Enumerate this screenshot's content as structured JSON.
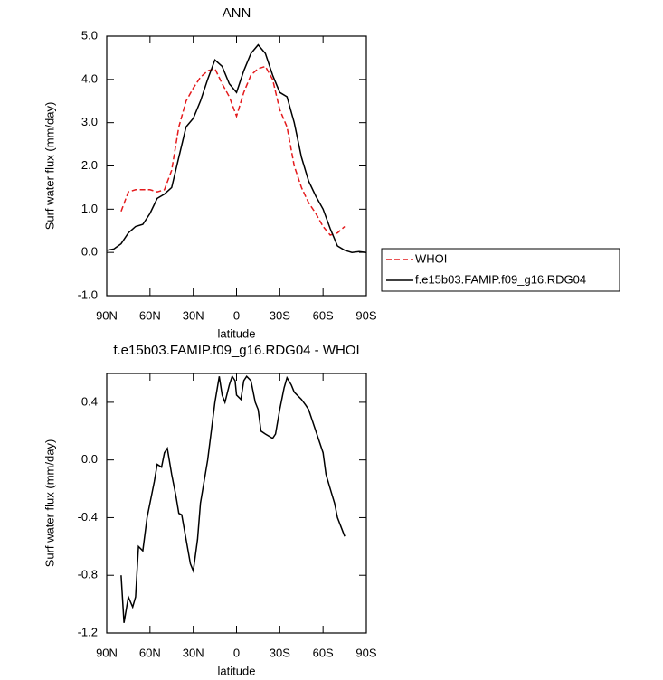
{
  "chart_data": [
    {
      "type": "line",
      "title": "ANN",
      "x_label": "latitude",
      "y_label": "Surf water flux (mm/day)",
      "x": [
        90,
        85,
        80,
        75,
        70,
        65,
        60,
        55,
        50,
        45,
        40,
        35,
        30,
        25,
        20,
        15,
        10,
        5,
        0,
        -5,
        -10,
        -15,
        -20,
        -25,
        -30,
        -35,
        -40,
        -45,
        -50,
        -55,
        -60,
        -65,
        -70,
        -75,
        -80,
        -85,
        -90
      ],
      "series": [
        {
          "name": "WHOI",
          "color": "#e41a1c",
          "line_style": "dashed",
          "values": [
            null,
            null,
            0.95,
            1.4,
            1.45,
            1.45,
            1.45,
            1.4,
            1.45,
            1.9,
            2.9,
            3.5,
            3.8,
            4.05,
            4.2,
            4.25,
            3.9,
            3.6,
            3.15,
            3.7,
            4.1,
            4.25,
            4.3,
            4.0,
            3.3,
            2.9,
            2.0,
            1.5,
            1.15,
            0.9,
            0.6,
            0.4,
            0.45,
            0.6,
            null,
            null,
            null
          ]
        },
        {
          "name": "f.e15b03.FAMIP.f09_g16.RDG04",
          "color": "#000000",
          "line_style": "solid",
          "values": [
            0.05,
            0.08,
            0.2,
            0.45,
            0.6,
            0.65,
            0.9,
            1.25,
            1.35,
            1.5,
            2.2,
            2.9,
            3.1,
            3.5,
            4.0,
            4.45,
            4.3,
            3.9,
            3.7,
            4.2,
            4.6,
            4.8,
            4.6,
            4.1,
            3.7,
            3.6,
            3.0,
            2.2,
            1.65,
            1.3,
            1.0,
            0.55,
            0.15,
            0.05,
            0.0,
            0.02,
            0.0
          ]
        }
      ],
      "xlim": [
        90,
        -90
      ],
      "xticks": [
        {
          "value": 90,
          "label": "90N"
        },
        {
          "value": 60,
          "label": "60N"
        },
        {
          "value": 30,
          "label": "30N"
        },
        0,
        {
          "value": -30,
          "label": "30S"
        },
        {
          "value": -60,
          "label": "60S"
        },
        {
          "value": -90,
          "label": "90S"
        }
      ],
      "ylim": [
        -1,
        5
      ],
      "yticks": [
        {
          "value": -1,
          "label": "-1.0"
        },
        {
          "value": 0,
          "label": "0.0"
        },
        {
          "value": 1,
          "label": "1.0"
        },
        {
          "value": 2,
          "label": "2.0"
        },
        {
          "value": 3,
          "label": "3.0"
        },
        {
          "value": 4,
          "label": "4.0"
        },
        {
          "value": 5,
          "label": "5.0"
        }
      ],
      "legend": "right"
    },
    {
      "type": "line",
      "title": "f.e15b03.FAMIP.f09_g16.RDG04 - WHOI",
      "x_label": "latitude",
      "y_label": "Surf water flux (mm/day)",
      "x": [
        80,
        78,
        75,
        72,
        70,
        68,
        65,
        62,
        60,
        57,
        55,
        52,
        50,
        48,
        45,
        42,
        40,
        38,
        35,
        32,
        30,
        27,
        25,
        20,
        15,
        12,
        10,
        8,
        5,
        3,
        1,
        0,
        -3,
        -5,
        -7,
        -10,
        -13,
        -15,
        -17,
        -20,
        -25,
        -27,
        -30,
        -33,
        -35,
        -38,
        -40,
        -45,
        -48,
        -50,
        -55,
        -60,
        -62,
        -65,
        -68,
        -70,
        -75
      ],
      "values": [
        -0.8,
        -1.13,
        -0.95,
        -1.02,
        -0.95,
        -0.6,
        -0.63,
        -0.4,
        -0.3,
        -0.15,
        -0.03,
        -0.05,
        0.05,
        0.08,
        -0.1,
        -0.25,
        -0.37,
        -0.38,
        -0.55,
        -0.72,
        -0.77,
        -0.55,
        -0.3,
        0.0,
        0.4,
        0.58,
        0.45,
        0.4,
        0.52,
        0.58,
        0.55,
        0.45,
        0.42,
        0.55,
        0.58,
        0.55,
        0.4,
        0.35,
        0.2,
        0.18,
        0.15,
        0.18,
        0.35,
        0.5,
        0.57,
        0.52,
        0.47,
        0.42,
        0.38,
        0.35,
        0.2,
        0.05,
        -0.1,
        -0.2,
        -0.3,
        -0.4,
        -0.53
      ],
      "color": "#000000",
      "xlim": [
        90,
        -90
      ],
      "xticks": [
        {
          "value": 90,
          "label": "90N"
        },
        {
          "value": 60,
          "label": "60N"
        },
        {
          "value": 30,
          "label": "30N"
        },
        0,
        {
          "value": -30,
          "label": "30S"
        },
        {
          "value": -60,
          "label": "60S"
        },
        {
          "value": -90,
          "label": "90S"
        }
      ],
      "ylim": [
        -1.2,
        0.6
      ],
      "yticks": [
        {
          "value": -1.2,
          "label": "-1.2"
        },
        {
          "value": -0.8,
          "label": "-0.8"
        },
        {
          "value": -0.4,
          "label": "-0.4"
        },
        {
          "value": 0,
          "label": "0.0"
        },
        {
          "value": 0.4,
          "label": "0.4"
        }
      ]
    }
  ]
}
